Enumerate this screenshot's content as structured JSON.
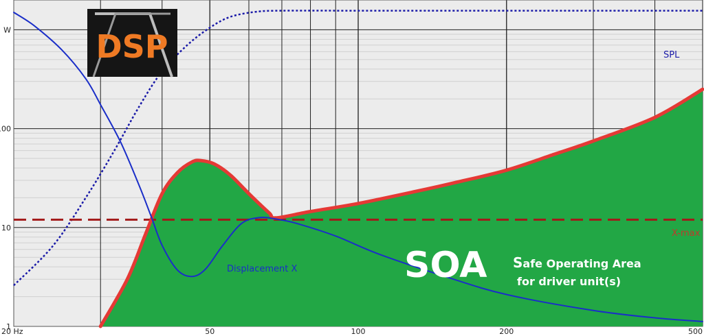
{
  "chart_data": {
    "type": "line",
    "xscale": "log",
    "yscale": "log",
    "xlim": [
      20,
      500
    ],
    "ylim": [
      1,
      2000
    ],
    "grid": true,
    "x_tick_labels": [
      {
        "value": 20,
        "label": "20 Hz"
      },
      {
        "value": 50,
        "label": "50"
      },
      {
        "value": 100,
        "label": "100"
      },
      {
        "value": 200,
        "label": "200"
      },
      {
        "value": 500,
        "label": "500"
      }
    ],
    "y_tick_labels": [
      {
        "value": 1,
        "label": "1"
      },
      {
        "value": 10,
        "label": "10"
      },
      {
        "value": 100,
        "label": "100"
      },
      {
        "value": 1000,
        "label": "W"
      }
    ],
    "series": [
      {
        "name": "SPL",
        "color": "#1a1aa8",
        "style": "dotted",
        "x": [
          20,
          24,
          28,
          32,
          36,
          40,
          45,
          50,
          55,
          62,
          70,
          100,
          200,
          500
        ],
        "y": [
          2.6,
          6.5,
          20,
          60,
          170,
          380,
          700,
          1050,
          1350,
          1520,
          1560,
          1560,
          1560,
          1560
        ]
      },
      {
        "name": "Displacement X",
        "color": "#1a2ec8",
        "style": "solid",
        "x": [
          20,
          22,
          25,
          28,
          30,
          33,
          36,
          38,
          40,
          43,
          46,
          49,
          53,
          58,
          63,
          68,
          75,
          90,
          110,
          150,
          200,
          300,
          400,
          500
        ],
        "y": [
          1500,
          1100,
          630,
          320,
          175,
          72,
          26,
          13,
          6.6,
          3.7,
          3.2,
          3.8,
          6.5,
          11,
          12.6,
          12.2,
          11,
          8.2,
          5.4,
          3.2,
          2.1,
          1.45,
          1.22,
          1.12
        ]
      },
      {
        "name": "X-max",
        "color": "#a31a1a",
        "style": "dashed",
        "x": [
          20,
          500
        ],
        "y": [
          12,
          12
        ]
      },
      {
        "name": "SOA boundary",
        "color": "#e53935",
        "style": "solid",
        "x": [
          30,
          34,
          37,
          40,
          43,
          46,
          48,
          51,
          55,
          60,
          66,
          68,
          80,
          100,
          130,
          160,
          200,
          250,
          300,
          400,
          500
        ],
        "y": [
          1,
          3,
          8.5,
          22,
          36,
          46,
          47.5,
          44,
          34,
          22,
          14,
          12.5,
          14.5,
          17.5,
          23,
          29,
          38,
          55,
          75,
          130,
          250
        ]
      }
    ],
    "annotations": {
      "spl_label": "SPL",
      "displacement_label": "Displacement X",
      "xmax_label": "X-max",
      "soa_big": "SOA",
      "soa_line1_initial": "S",
      "soa_line1_rest": "afe Operating  Area",
      "soa_line2": "for driver unit(s)"
    },
    "colors": {
      "soa_fill": "#22a745",
      "grid": "#1f1f1f",
      "minor_grid": "#d0d0d0",
      "plot_bg": "#ececec"
    }
  },
  "logo": {
    "text": "DSP",
    "text_color": "#ef7a24",
    "bg_color": "#151515"
  }
}
